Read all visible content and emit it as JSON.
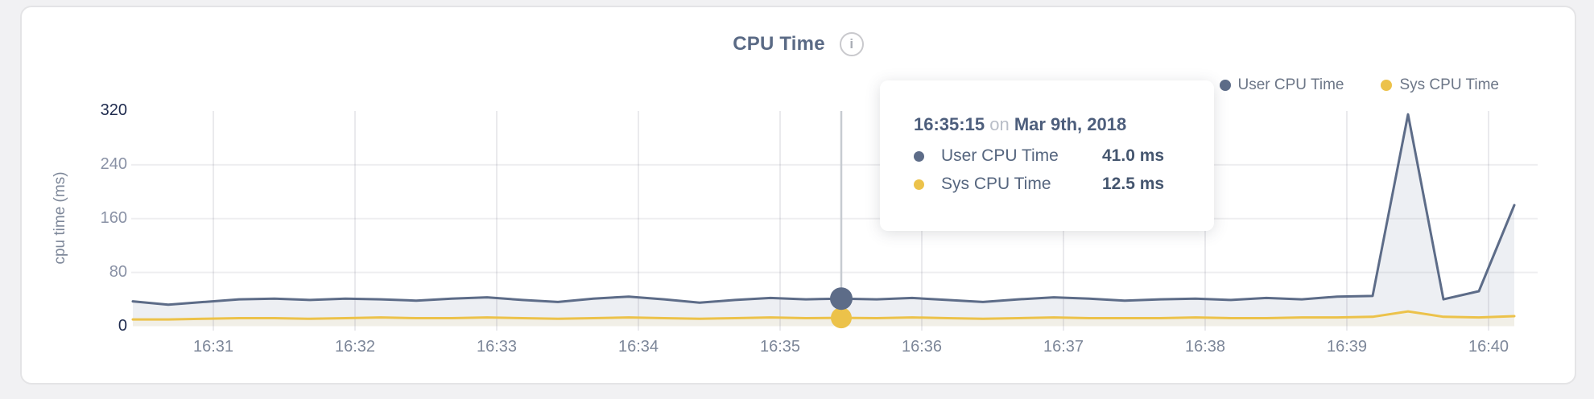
{
  "card": {
    "title": "CPU Time",
    "info_icon_glyph": "i"
  },
  "legend": [
    {
      "label": "User CPU Time",
      "color": "#5d6c88"
    },
    {
      "label": "Sys CPU Time",
      "color": "#ecc24a"
    }
  ],
  "axes": {
    "ylabel": "cpu time (ms)"
  },
  "tooltip": {
    "time": "16:35:15",
    "on_word": "on",
    "date": "Mar 9th, 2018",
    "rows": [
      {
        "label": "User CPU Time",
        "value": "41.0 ms",
        "color": "#5d6c88"
      },
      {
        "label": "Sys CPU Time",
        "value": "12.5 ms",
        "color": "#ecc24a"
      }
    ]
  },
  "chart_data": {
    "type": "line",
    "title": "CPU Time",
    "xlabel": "",
    "ylabel": "cpu time (ms)",
    "ylim": [
      0,
      320
    ],
    "y_ticks": [
      0,
      80,
      160,
      240,
      320
    ],
    "x_tick_labels": [
      "16:31",
      "16:32",
      "16:33",
      "16:34",
      "16:35",
      "16:36",
      "16:37",
      "16:38",
      "16:39",
      "16:40"
    ],
    "sample_interval_seconds": 15,
    "grid": true,
    "legend_position": "top-right",
    "series": [
      {
        "name": "User CPU Time",
        "color": "#5d6c88",
        "fill": "#edeff3",
        "values": [
          37,
          32,
          36,
          40,
          41,
          39,
          41,
          40,
          38,
          41,
          43,
          39,
          36,
          41,
          44,
          40,
          35,
          39,
          42,
          40,
          41,
          40,
          42,
          39,
          36,
          40,
          43,
          41,
          38,
          40,
          41,
          39,
          42,
          40,
          44,
          45,
          315,
          40,
          52,
          180
        ]
      },
      {
        "name": "Sys CPU Time",
        "color": "#ecc24a",
        "fill": "#f1efe7",
        "values": [
          10,
          10,
          11,
          12,
          12,
          11,
          12,
          13,
          12,
          12,
          13,
          12,
          11,
          12,
          13,
          12,
          11,
          12,
          13,
          12,
          12.5,
          12,
          13,
          12,
          11,
          12,
          13,
          12,
          12,
          12,
          13,
          12,
          12,
          13,
          13,
          14,
          22,
          14,
          13,
          15
        ]
      }
    ],
    "highlight": {
      "index": 20,
      "time": "16:35:15",
      "date": "Mar 9th, 2018",
      "user_value_ms": 41.0,
      "sys_value_ms": 12.5
    }
  }
}
